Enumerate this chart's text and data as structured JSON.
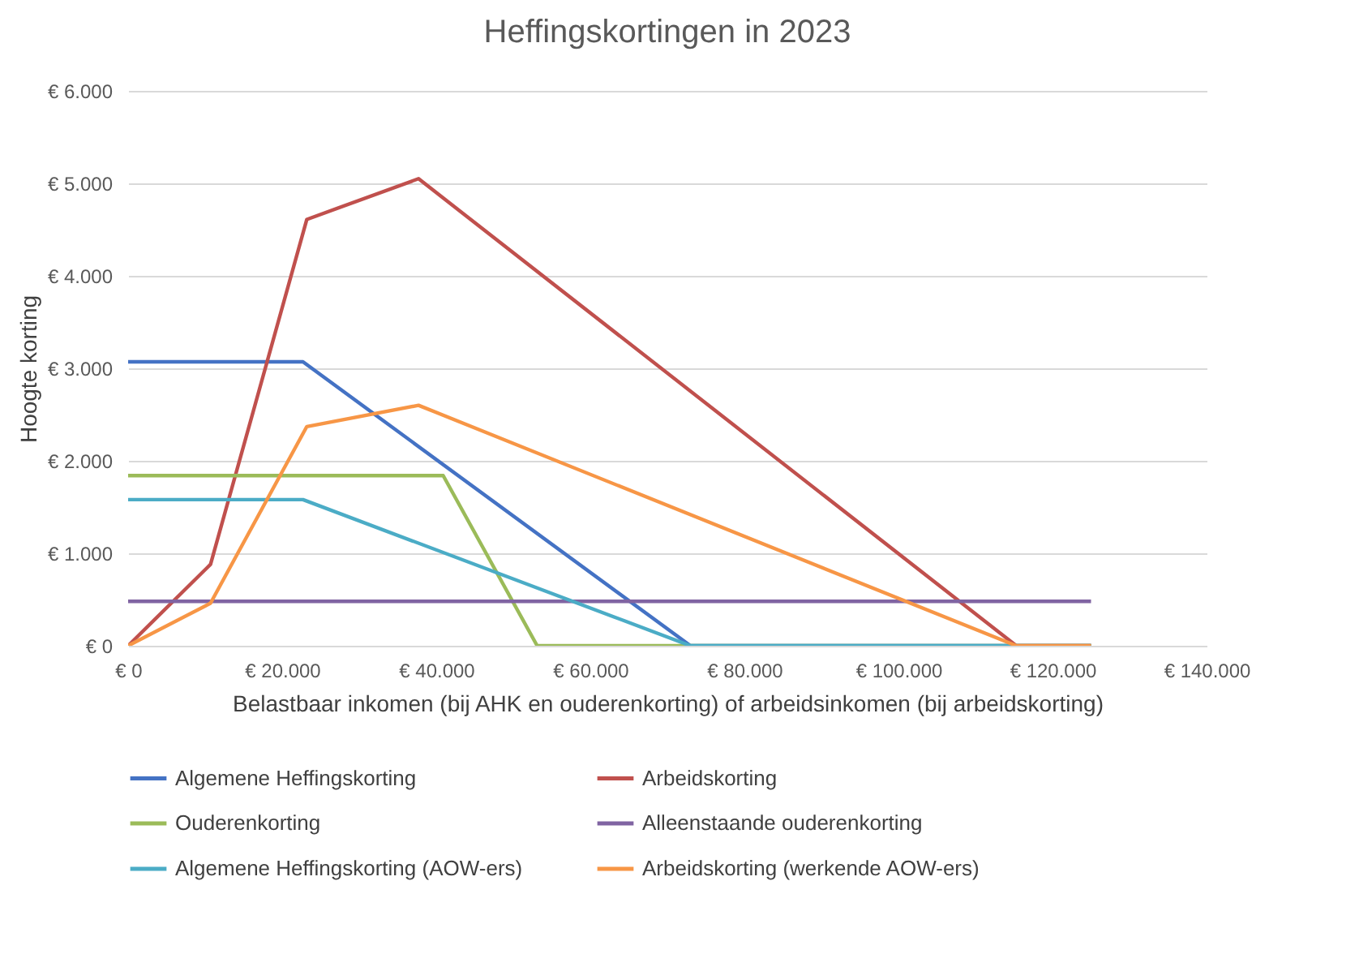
{
  "chart_data": {
    "type": "line",
    "title": "Heffingskortingen in 2023",
    "xlabel": "Belastbaar inkomen (bij AHK en ouderenkorting) of arbeidsinkomen (bij arbeidskorting)",
    "ylabel": "Hoogte korting",
    "xlim": [
      0,
      140000
    ],
    "xticks": [
      {
        "value": 0,
        "label": "€ 0"
      },
      {
        "value": 20000,
        "label": "€ 20.000"
      },
      {
        "value": 40000,
        "label": "€ 40.000"
      },
      {
        "value": 60000,
        "label": "€ 60.000"
      },
      {
        "value": 80000,
        "label": "€ 80.000"
      },
      {
        "value": 100000,
        "label": "€ 100.000"
      },
      {
        "value": 120000,
        "label": "€ 120.000"
      },
      {
        "value": 140000,
        "label": "€ 140.000"
      }
    ],
    "ylim": [
      0,
      6000
    ],
    "yticks": [
      {
        "value": 0,
        "label": "€ 0"
      },
      {
        "value": 1000,
        "label": "€ 1.000"
      },
      {
        "value": 2000,
        "label": "€ 2.000"
      },
      {
        "value": 3000,
        "label": "€ 3.000"
      },
      {
        "value": 4000,
        "label": "€ 4.000"
      },
      {
        "value": 5000,
        "label": "€ 5.000"
      },
      {
        "value": 6000,
        "label": "€ 6.000"
      }
    ],
    "grid": "y",
    "legend": "bottom",
    "series": [
      {
        "name": "Algemene Heffingskorting",
        "color": "#4472c4",
        "x": [
          0,
          22700,
          73000,
          125000
        ],
        "values": [
          3070,
          3070,
          0,
          0
        ]
      },
      {
        "name": "Arbeidskorting",
        "color": "#c0504d",
        "x": [
          0,
          10700,
          23200,
          37700,
          115300,
          125000
        ],
        "values": [
          0,
          880,
          4610,
          5050,
          0,
          0
        ]
      },
      {
        "name": "Ouderenkorting",
        "color": "#9bbb59",
        "x": [
          0,
          40900,
          53100,
          125000
        ],
        "values": [
          1840,
          1840,
          0,
          0
        ]
      },
      {
        "name": "Alleenstaande ouderenkorting",
        "color": "#8064a2",
        "x": [
          0,
          125000
        ],
        "values": [
          480,
          480
        ]
      },
      {
        "name": "Algemene Heffingskorting (AOW-ers)",
        "color": "#4bacc6",
        "x": [
          0,
          22700,
          73000,
          125000
        ],
        "values": [
          1580,
          1580,
          0,
          0
        ]
      },
      {
        "name": "Arbeidskorting (werkende AOW-ers)",
        "color": "#f79646",
        "x": [
          0,
          10700,
          23200,
          37700,
          115300,
          125000
        ],
        "values": [
          0,
          460,
          2370,
          2600,
          0,
          0
        ]
      }
    ]
  }
}
